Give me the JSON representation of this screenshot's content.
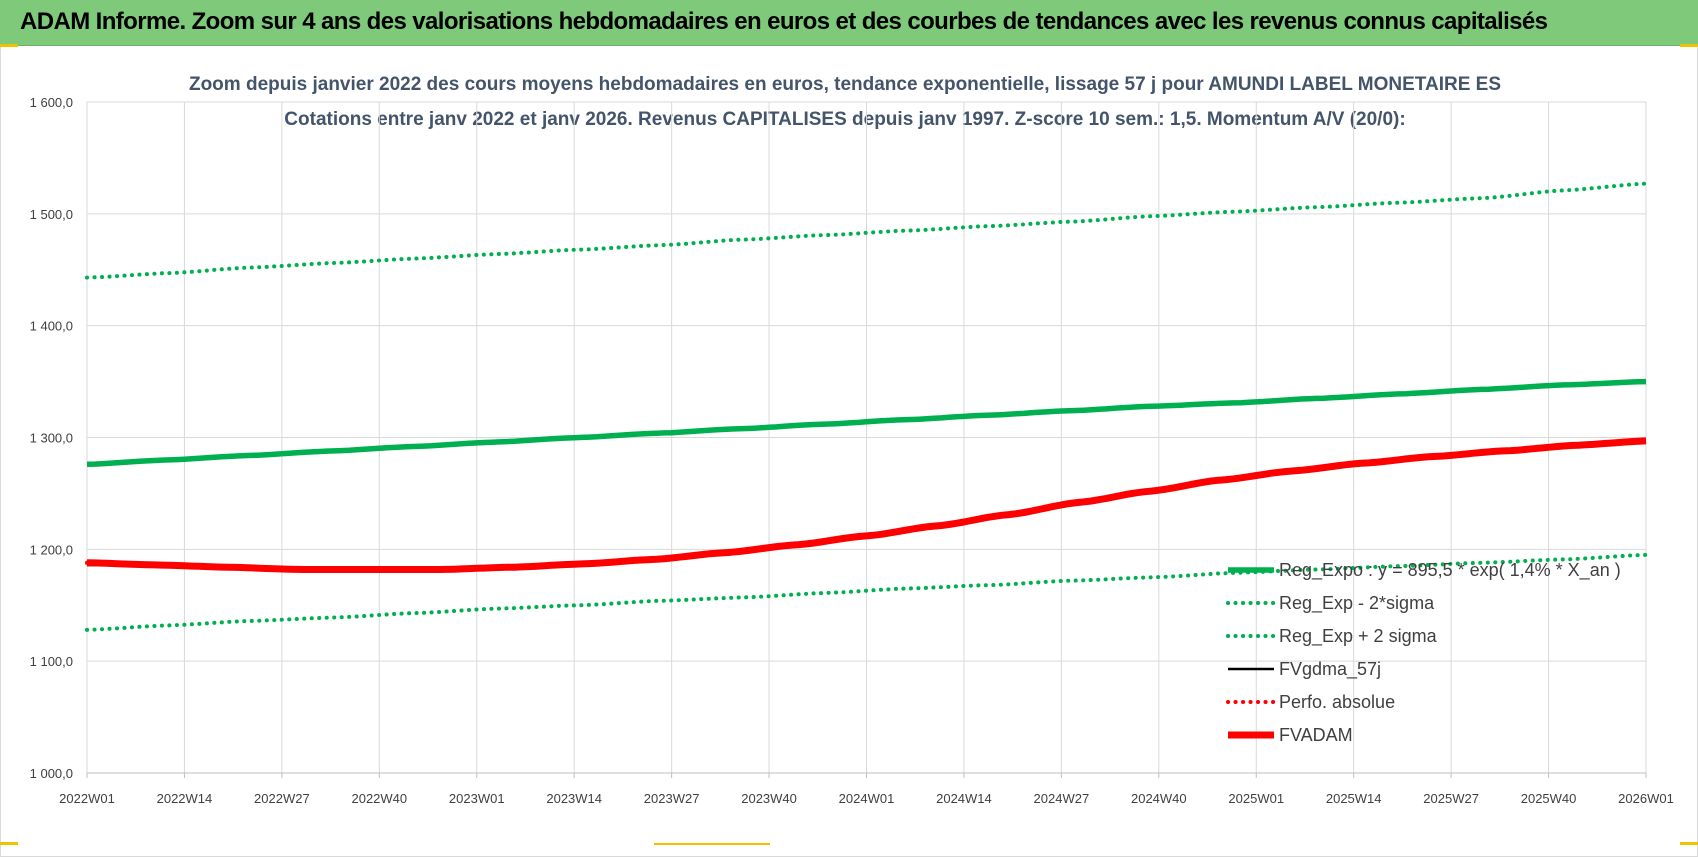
{
  "header": {
    "title": "ADAM Informe. Zoom sur 4 ans des valorisations hebdomadaires en euros et des courbes de tendances avec les revenus connus capitalisés"
  },
  "colors": {
    "header_bg": "#7fc97a",
    "trend_green": "#00b050",
    "fvadam_red": "#ff0000",
    "fvgdma_black": "#000000",
    "grid": "#d9d9d9"
  },
  "chart_data": {
    "type": "line",
    "title": [
      "Zoom depuis janvier 2022 des cours moyens hebdomadaires en euros, tendance exponentielle, lissage 57 j pour AMUNDI LABEL MONETAIRE ES",
      "Cotations entre janv 2022 et janv 2026. Revenus CAPITALISES depuis janv 1997. Z-score 10 sem.: 1,5. Momentum A/V (20/0):"
    ],
    "x_ticks": [
      "2022W01",
      "2022W14",
      "2022W27",
      "2022W40",
      "2023W01",
      "2023W14",
      "2023W27",
      "2023W40",
      "2024W01",
      "2024W14",
      "2024W27",
      "2024W40",
      "2025W01",
      "2025W14",
      "2025W27",
      "2025W40",
      "2026W01"
    ],
    "ylim": [
      1000,
      1600
    ],
    "y_ticks": [
      "1 000,0",
      "1 100,0",
      "1 200,0",
      "1 300,0",
      "1 400,0",
      "1 500,0",
      "1 600,0"
    ],
    "y_tick_values": [
      1000,
      1100,
      1200,
      1300,
      1400,
      1500,
      1600
    ],
    "grid": true,
    "legend_position": "right",
    "series": [
      {
        "name": "Reg_Expo : y = 895,5 * exp( 1,4% * X_an )",
        "style": "solid-thick",
        "color": "#00b050",
        "values": [
          1276,
          1280,
          1284,
          1288,
          1292,
          1296,
          1300,
          1304,
          1308,
          1312,
          1316,
          1320,
          1324,
          1328,
          1331,
          1335,
          1339,
          1343,
          1347,
          1350
        ]
      },
      {
        "name": "Reg_Exp - 2*sigma",
        "style": "dotted",
        "color": "#00b050",
        "values": [
          1128,
          1132,
          1136,
          1139,
          1143,
          1147,
          1150,
          1154,
          1157,
          1161,
          1165,
          1168,
          1172,
          1175,
          1179,
          1182,
          1185,
          1188,
          1191,
          1195
        ]
      },
      {
        "name": "Reg_Exp + 2 sigma",
        "style": "dotted",
        "color": "#00b050",
        "values": [
          1443,
          1447,
          1452,
          1456,
          1460,
          1464,
          1468,
          1472,
          1477,
          1481,
          1485,
          1489,
          1493,
          1498,
          1502,
          1506,
          1510,
          1514,
          1521,
          1527
        ]
      },
      {
        "name": "FVgdma_57j",
        "style": "solid",
        "color": "#000000",
        "values": [
          1186,
          1185,
          1183,
          1182,
          1182,
          1182,
          1184,
          1187,
          1191,
          1197,
          1204,
          1212,
          1221,
          1231,
          1242,
          1252,
          1262,
          1270,
          1277,
          1283,
          1288,
          1293,
          1297
        ]
      },
      {
        "name": "Perfo. absolue",
        "style": "dotted",
        "color": "#ff0000",
        "values": [
          1188,
          1186,
          1184,
          1182,
          1182,
          1182,
          1184,
          1187,
          1191,
          1197,
          1204,
          1212,
          1221,
          1231,
          1242,
          1252,
          1262,
          1270,
          1277,
          1283,
          1288,
          1293,
          1297
        ]
      },
      {
        "name": "FVADAM",
        "style": "solid-thick",
        "color": "#ff0000",
        "values": [
          1188,
          1186,
          1184,
          1182,
          1182,
          1182,
          1184,
          1187,
          1191,
          1197,
          1204,
          1212,
          1221,
          1231,
          1242,
          1252,
          1262,
          1270,
          1277,
          1283,
          1288,
          1293,
          1297
        ]
      }
    ]
  }
}
